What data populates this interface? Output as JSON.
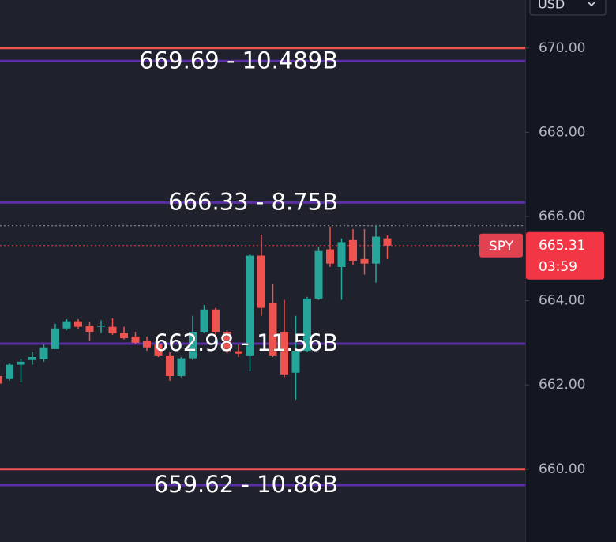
{
  "chart_data": {
    "type": "candlestick",
    "currency": "USD",
    "ylim": [
      658.27,
      671.14
    ],
    "yticks": [
      {
        "value": 660,
        "label": "660.00"
      },
      {
        "value": 662,
        "label": "662.00"
      },
      {
        "value": 664,
        "label": "664.00"
      },
      {
        "value": 666,
        "label": "666.00"
      },
      {
        "value": 668,
        "label": "668.00"
      },
      {
        "value": 670,
        "label": "670.00"
      }
    ],
    "up_color": "#26a69a",
    "down_color": "#ef5350",
    "open": [
      662.21,
      662.14,
      662.48,
      662.59,
      662.61,
      662.85,
      663.34,
      663.51,
      663.41,
      663.38,
      663.38,
      663.23,
      663.15,
      663.04,
      662.96,
      662.7,
      662.21,
      662.63,
      663.26,
      663.79,
      663.26,
      662.8,
      662.7,
      665.07,
      663.94,
      663.26,
      662.29,
      662.81,
      664.05,
      665.22,
      664.8,
      665.44,
      664.99,
      664.88,
      665.48
    ],
    "high": [
      662.25,
      662.51,
      662.61,
      662.78,
      662.96,
      663.45,
      663.56,
      663.56,
      663.49,
      663.53,
      663.58,
      663.38,
      663.26,
      663.15,
      663.04,
      662.78,
      662.66,
      663.64,
      663.9,
      663.83,
      663.3,
      662.96,
      665.1,
      665.57,
      664.39,
      664.02,
      663.64,
      664.09,
      665.29,
      665.76,
      665.48,
      665.7,
      665.7,
      665.78,
      665.55
    ],
    "low": [
      661.99,
      662.1,
      662.06,
      662.48,
      662.55,
      662.85,
      663.3,
      663.34,
      663.04,
      663.23,
      663.19,
      663.08,
      662.96,
      662.81,
      662.66,
      662.1,
      662.18,
      662.59,
      663.23,
      663.19,
      662.74,
      662.66,
      662.33,
      663.64,
      662.66,
      662.18,
      661.65,
      662.78,
      664.02,
      664.8,
      664.02,
      664.84,
      664.62,
      664.43,
      664.99
    ],
    "close": [
      662.03,
      662.48,
      662.55,
      662.66,
      662.89,
      663.34,
      663.51,
      663.38,
      663.26,
      663.41,
      663.23,
      663.11,
      663.0,
      662.89,
      662.7,
      662.21,
      662.63,
      663.26,
      663.79,
      663.26,
      662.8,
      662.74,
      665.07,
      663.83,
      662.7,
      662.25,
      662.81,
      664.05,
      665.18,
      664.88,
      665.39,
      664.95,
      664.88,
      665.52,
      665.31
    ],
    "limit_lines": [
      {
        "value": 670,
        "color": "#f05350"
      },
      {
        "value": 660,
        "color": "#f05350"
      }
    ],
    "levels": [
      {
        "value": 669.69,
        "label": "669.69 - 10.489B",
        "color": "#5b2ea6"
      },
      {
        "value": 666.33,
        "label": "666.33 - 8.75B",
        "color": "#5b2ea6"
      },
      {
        "value": 662.98,
        "label": "662.98 - 11.56B",
        "color": "#5b2ea6"
      },
      {
        "value": 659.62,
        "label": "659.62 - 10.86B",
        "color": "#5b2ea6"
      }
    ],
    "high_line": {
      "value": 665.78,
      "color": "#9598a1"
    },
    "last_price": {
      "symbol": "SPY",
      "value": 665.31,
      "countdown": "03:59",
      "color": "#f23645"
    }
  }
}
